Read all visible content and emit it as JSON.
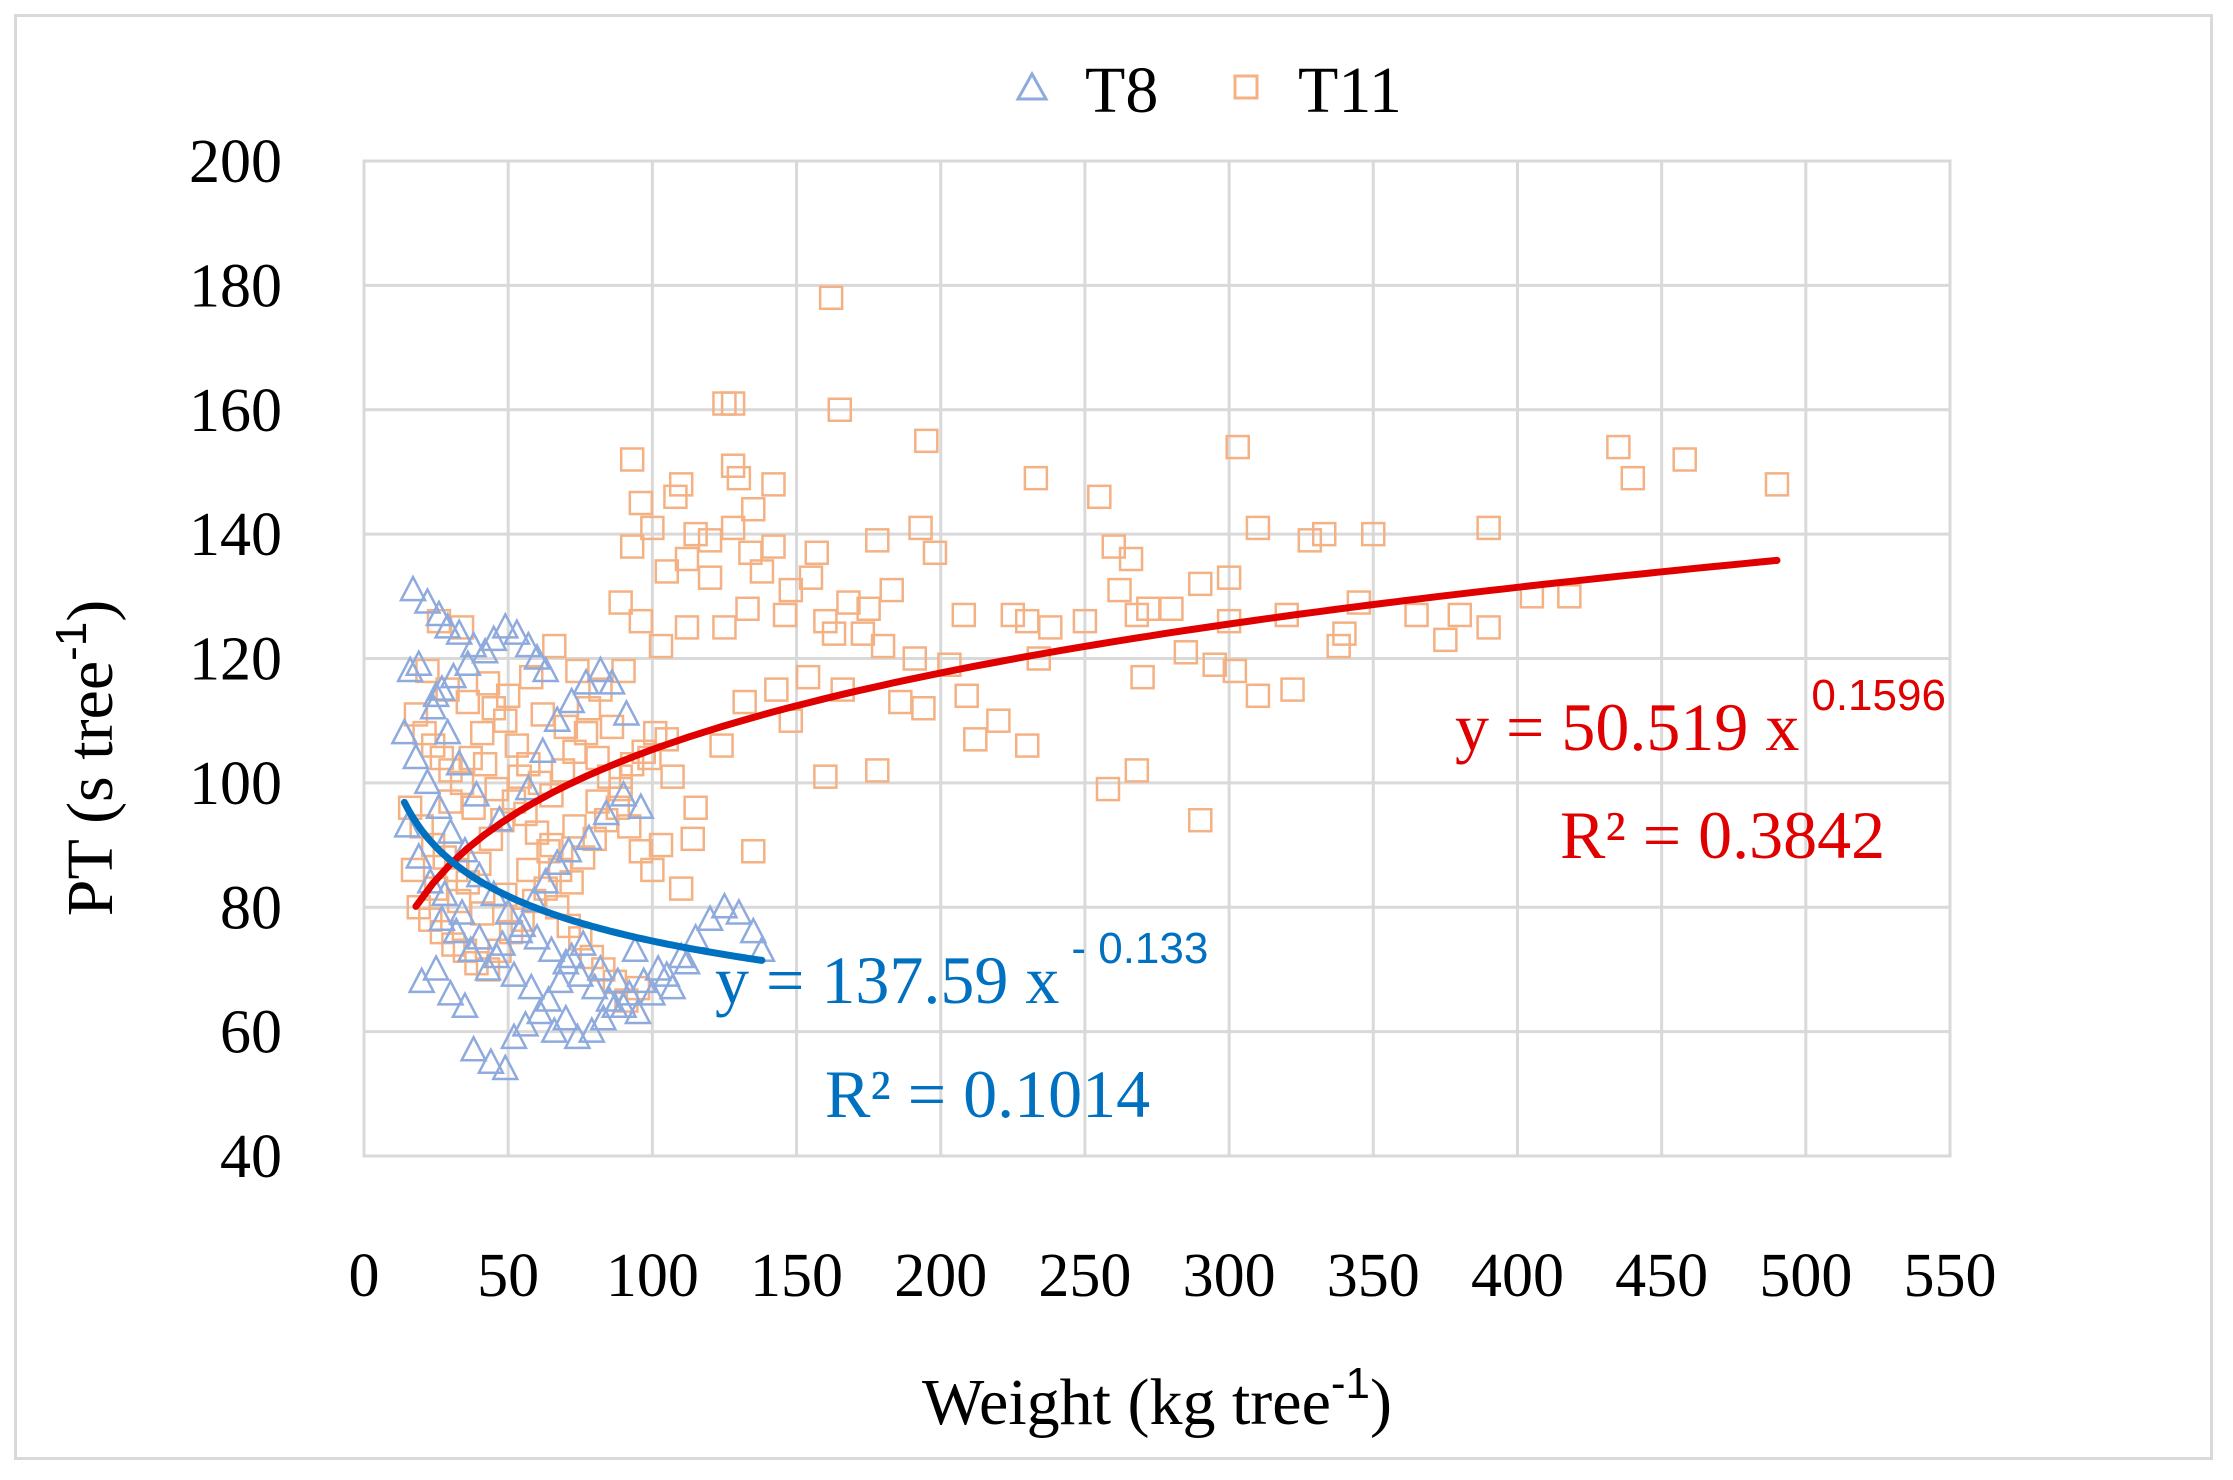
{
  "chart_data": {
    "type": "scatter",
    "xlabel": "Weight (kg tree",
    "xlabel_sup": "-1",
    "xlabel_end": ")",
    "ylabel": "PT (s tree",
    "ylabel_sup": "-1",
    "ylabel_end": ")",
    "xlim": [
      0,
      550
    ],
    "ylim": [
      40,
      200
    ],
    "xticks": [
      0,
      50,
      100,
      150,
      200,
      250,
      300,
      350,
      400,
      450,
      500,
      550
    ],
    "yticks": [
      40,
      60,
      80,
      100,
      120,
      140,
      160,
      180,
      200
    ],
    "grid": true,
    "legend_position": "top-center",
    "series": [
      {
        "name": "T8",
        "marker": "triangle",
        "color": "#8faadc",
        "trendline": {
          "type": "power",
          "a": 137.59,
          "b": -0.133,
          "x_range": [
            14,
            138
          ],
          "color": "#0070c0",
          "equation_main": "y = 137.59 x",
          "equation_exp": "- 0.133",
          "r2_text": "R² = 0.1014"
        },
        "points": [
          [
            17,
            131
          ],
          [
            22,
            129
          ],
          [
            26,
            127
          ],
          [
            29,
            125
          ],
          [
            33,
            124
          ],
          [
            38,
            122
          ],
          [
            45,
            123
          ],
          [
            49,
            125
          ],
          [
            53,
            124
          ],
          [
            57,
            122
          ],
          [
            60,
            120
          ],
          [
            63,
            118
          ],
          [
            42,
            121
          ],
          [
            36,
            119
          ],
          [
            31,
            117
          ],
          [
            27,
            115
          ],
          [
            24,
            112
          ],
          [
            19,
            119
          ],
          [
            16,
            118
          ],
          [
            14,
            108
          ],
          [
            18,
            104
          ],
          [
            22,
            100
          ],
          [
            26,
            96
          ],
          [
            30,
            92
          ],
          [
            35,
            89
          ],
          [
            40,
            85
          ],
          [
            45,
            82
          ],
          [
            50,
            79
          ],
          [
            55,
            77
          ],
          [
            60,
            75
          ],
          [
            65,
            73
          ],
          [
            70,
            71
          ],
          [
            75,
            69
          ],
          [
            80,
            67
          ],
          [
            85,
            65
          ],
          [
            90,
            64
          ],
          [
            95,
            63
          ],
          [
            100,
            66
          ],
          [
            105,
            69
          ],
          [
            110,
            72
          ],
          [
            115,
            75
          ],
          [
            120,
            78
          ],
          [
            125,
            80
          ],
          [
            130,
            79
          ],
          [
            135,
            76
          ],
          [
            138,
            73
          ],
          [
            20,
            68
          ],
          [
            25,
            70
          ],
          [
            30,
            66
          ],
          [
            35,
            64
          ],
          [
            38,
            57
          ],
          [
            44,
            55
          ],
          [
            49,
            54
          ],
          [
            52,
            59
          ],
          [
            56,
            61
          ],
          [
            61,
            63
          ],
          [
            66,
            60
          ],
          [
            70,
            62
          ],
          [
            74,
            59
          ],
          [
            79,
            60
          ],
          [
            83,
            62
          ],
          [
            87,
            64
          ],
          [
            92,
            66
          ],
          [
            97,
            68
          ],
          [
            102,
            70
          ],
          [
            107,
            67
          ],
          [
            112,
            71
          ],
          [
            28,
            82
          ],
          [
            34,
            79
          ],
          [
            40,
            75
          ],
          [
            46,
            72
          ],
          [
            52,
            69
          ],
          [
            58,
            67
          ],
          [
            64,
            65
          ],
          [
            68,
            68
          ],
          [
            72,
            72
          ],
          [
            76,
            74
          ],
          [
            82,
            70
          ],
          [
            88,
            68
          ],
          [
            94,
            73
          ],
          [
            15,
            93
          ],
          [
            19,
            88
          ],
          [
            23,
            84
          ],
          [
            27,
            78
          ],
          [
            32,
            76
          ],
          [
            37,
            73
          ],
          [
            43,
            70
          ],
          [
            48,
            74
          ],
          [
            54,
            76
          ],
          [
            59,
            81
          ],
          [
            63,
            84
          ],
          [
            67,
            87
          ],
          [
            71,
            89
          ],
          [
            78,
            91
          ],
          [
            84,
            95
          ],
          [
            90,
            98
          ],
          [
            96,
            96
          ],
          [
            62,
            105
          ],
          [
            67,
            110
          ],
          [
            72,
            113
          ],
          [
            77,
            116
          ],
          [
            82,
            118
          ],
          [
            86,
            116
          ],
          [
            91,
            111
          ],
          [
            57,
            99
          ],
          [
            47,
            94
          ],
          [
            39,
            98
          ],
          [
            33,
            103
          ],
          [
            29,
            108
          ],
          [
            25,
            114
          ]
        ]
      },
      {
        "name": "T11",
        "marker": "square",
        "color": "#f4b183",
        "trendline": {
          "type": "power",
          "a": 50.519,
          "b": 0.1596,
          "x_range": [
            18,
            490
          ],
          "color": "#e00000",
          "equation_main": "y = 50.519 x",
          "equation_exp": "0.1596",
          "r2_text": "R² = 0.3842"
        },
        "points": [
          [
            162,
            178
          ],
          [
            125,
            161
          ],
          [
            128,
            161
          ],
          [
            165,
            160
          ],
          [
            195,
            155
          ],
          [
            303,
            154
          ],
          [
            435,
            154
          ],
          [
            458,
            152
          ],
          [
            93,
            152
          ],
          [
            128,
            151
          ],
          [
            130,
            149
          ],
          [
            110,
            148
          ],
          [
            233,
            149
          ],
          [
            440,
            149
          ],
          [
            490,
            148
          ],
          [
            108,
            146
          ],
          [
            142,
            148
          ],
          [
            255,
            146
          ],
          [
            96,
            145
          ],
          [
            135,
            144
          ],
          [
            100,
            141
          ],
          [
            115,
            140
          ],
          [
            120,
            139
          ],
          [
            128,
            141
          ],
          [
            134,
            137
          ],
          [
            142,
            138
          ],
          [
            157,
            137
          ],
          [
            178,
            139
          ],
          [
            193,
            141
          ],
          [
            198,
            137
          ],
          [
            260,
            138
          ],
          [
            266,
            136
          ],
          [
            310,
            141
          ],
          [
            328,
            139
          ],
          [
            333,
            140
          ],
          [
            350,
            140
          ],
          [
            390,
            141
          ],
          [
            93,
            138
          ],
          [
            105,
            134
          ],
          [
            112,
            136
          ],
          [
            120,
            133
          ],
          [
            138,
            134
          ],
          [
            148,
            131
          ],
          [
            155,
            133
          ],
          [
            168,
            129
          ],
          [
            175,
            128
          ],
          [
            183,
            131
          ],
          [
            208,
            127
          ],
          [
            230,
            126
          ],
          [
            262,
            131
          ],
          [
            268,
            127
          ],
          [
            280,
            128
          ],
          [
            290,
            132
          ],
          [
            300,
            133
          ],
          [
            338,
            122
          ],
          [
            345,
            129
          ],
          [
            365,
            127
          ],
          [
            380,
            127
          ],
          [
            405,
            130
          ],
          [
            418,
            130
          ],
          [
            89,
            129
          ],
          [
            96,
            126
          ],
          [
            103,
            122
          ],
          [
            112,
            125
          ],
          [
            125,
            125
          ],
          [
            133,
            128
          ],
          [
            146,
            127
          ],
          [
            160,
            126
          ],
          [
            163,
            124
          ],
          [
            173,
            124
          ],
          [
            180,
            122
          ],
          [
            191,
            120
          ],
          [
            203,
            119
          ],
          [
            225,
            127
          ],
          [
            238,
            125
          ],
          [
            270,
            117
          ],
          [
            285,
            121
          ],
          [
            295,
            119
          ],
          [
            302,
            118
          ],
          [
            310,
            114
          ],
          [
            322,
            115
          ],
          [
            340,
            124
          ],
          [
            375,
            123
          ],
          [
            390,
            125
          ],
          [
            212,
            107
          ],
          [
            220,
            110
          ],
          [
            230,
            106
          ],
          [
            258,
            99
          ],
          [
            268,
            102
          ],
          [
            290,
            94
          ],
          [
            160,
            101
          ],
          [
            178,
            102
          ],
          [
            148,
            110
          ],
          [
            132,
            113
          ],
          [
            124,
            106
          ],
          [
            114,
            91
          ],
          [
            103,
            90
          ],
          [
            110,
            83
          ],
          [
            135,
            89
          ],
          [
            143,
            115
          ],
          [
            154,
            117
          ],
          [
            166,
            115
          ],
          [
            186,
            113
          ],
          [
            194,
            112
          ],
          [
            209,
            114
          ],
          [
            234,
            120
          ],
          [
            250,
            126
          ],
          [
            272,
            128
          ],
          [
            300,
            126
          ],
          [
            320,
            127
          ],
          [
            18,
            111
          ],
          [
            21,
            108
          ],
          [
            24,
            106
          ],
          [
            27,
            104
          ],
          [
            30,
            102
          ],
          [
            34,
            100
          ],
          [
            37,
            104
          ],
          [
            41,
            108
          ],
          [
            45,
            112
          ],
          [
            49,
            110
          ],
          [
            53,
            106
          ],
          [
            57,
            103
          ],
          [
            61,
            100
          ],
          [
            65,
            98
          ],
          [
            69,
            102
          ],
          [
            73,
            105
          ],
          [
            77,
            108
          ],
          [
            81,
            104
          ],
          [
            85,
            101
          ],
          [
            89,
            99
          ],
          [
            93,
            103
          ],
          [
            97,
            105
          ],
          [
            101,
            108
          ],
          [
            105,
            107
          ],
          [
            16,
            96
          ],
          [
            20,
            93
          ],
          [
            24,
            90
          ],
          [
            28,
            88
          ],
          [
            32,
            86
          ],
          [
            36,
            84
          ],
          [
            40,
            87
          ],
          [
            44,
            91
          ],
          [
            48,
            94
          ],
          [
            52,
            97
          ],
          [
            56,
            95
          ],
          [
            60,
            92
          ],
          [
            64,
            89
          ],
          [
            68,
            86
          ],
          [
            72,
            84
          ],
          [
            76,
            88
          ],
          [
            80,
            91
          ],
          [
            84,
            94
          ],
          [
            88,
            96
          ],
          [
            92,
            93
          ],
          [
            96,
            89
          ],
          [
            100,
            86
          ],
          [
            19,
            80
          ],
          [
            23,
            78
          ],
          [
            27,
            76
          ],
          [
            31,
            74
          ],
          [
            35,
            73
          ],
          [
            39,
            71
          ],
          [
            43,
            70
          ],
          [
            47,
            73
          ],
          [
            51,
            76
          ],
          [
            55,
            78
          ],
          [
            59,
            81
          ],
          [
            63,
            83
          ],
          [
            67,
            80
          ],
          [
            71,
            77
          ],
          [
            75,
            75
          ],
          [
            79,
            72
          ],
          [
            83,
            70
          ],
          [
            87,
            68
          ],
          [
            91,
            65
          ],
          [
            95,
            67
          ],
          [
            17,
            86
          ],
          [
            25,
            83
          ],
          [
            33,
            81
          ],
          [
            41,
            79
          ],
          [
            49,
            82
          ],
          [
            57,
            86
          ],
          [
            65,
            90
          ],
          [
            73,
            93
          ],
          [
            81,
            97
          ],
          [
            89,
            101
          ],
          [
            22,
            118
          ],
          [
            29,
            115
          ],
          [
            36,
            113
          ],
          [
            43,
            116
          ],
          [
            50,
            114
          ],
          [
            58,
            117
          ],
          [
            66,
            122
          ],
          [
            74,
            118
          ],
          [
            82,
            115
          ],
          [
            90,
            118
          ],
          [
            26,
            126
          ],
          [
            34,
            125
          ],
          [
            62,
            111
          ],
          [
            70,
            109
          ],
          [
            78,
            112
          ],
          [
            86,
            109
          ],
          [
            99,
            104
          ],
          [
            107,
            101
          ],
          [
            115,
            96
          ],
          [
            38,
            96
          ],
          [
            46,
            99
          ],
          [
            54,
            101
          ],
          [
            42,
            103
          ],
          [
            30,
            97
          ]
        ]
      }
    ]
  }
}
